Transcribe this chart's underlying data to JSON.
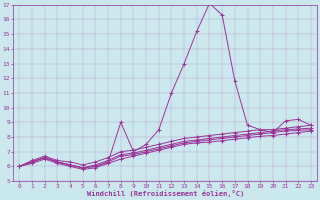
{
  "bg_color": "#cce8ef",
  "line_color": "#993399",
  "xlim_min": -0.5,
  "xlim_max": 23.5,
  "ylim_min": 5,
  "ylim_max": 17,
  "xtick_vals": [
    0,
    1,
    2,
    3,
    4,
    5,
    6,
    7,
    8,
    9,
    10,
    11,
    12,
    13,
    14,
    15,
    16,
    17,
    18,
    19,
    20,
    21,
    22,
    23
  ],
  "ytick_vals": [
    5,
    6,
    7,
    8,
    9,
    10,
    11,
    12,
    13,
    14,
    15,
    16,
    17
  ],
  "xlabel": "Windchill (Refroidissement éolien,°C)",
  "series": [
    [
      6.0,
      6.3,
      6.6,
      6.3,
      6.1,
      5.9,
      6.0,
      6.3,
      9.0,
      7.0,
      7.5,
      8.5,
      11.0,
      13.0,
      15.2,
      17.1,
      16.3,
      11.8,
      8.8,
      8.5,
      8.3,
      9.1,
      9.2,
      8.8
    ],
    [
      6.0,
      6.4,
      6.7,
      6.4,
      6.3,
      6.1,
      6.3,
      6.6,
      7.0,
      7.1,
      7.3,
      7.5,
      7.7,
      7.9,
      8.0,
      8.1,
      8.2,
      8.3,
      8.4,
      8.5,
      8.5,
      8.6,
      8.7,
      8.8
    ],
    [
      6.0,
      6.3,
      6.6,
      6.3,
      6.1,
      5.9,
      6.1,
      6.4,
      6.8,
      6.9,
      7.1,
      7.3,
      7.5,
      7.7,
      7.8,
      7.9,
      8.0,
      8.1,
      8.2,
      8.3,
      8.4,
      8.5,
      8.55,
      8.6
    ],
    [
      6.0,
      6.3,
      6.6,
      6.3,
      6.1,
      5.9,
      6.0,
      6.3,
      6.7,
      6.8,
      7.0,
      7.2,
      7.4,
      7.6,
      7.7,
      7.8,
      7.9,
      8.0,
      8.1,
      8.2,
      8.3,
      8.4,
      8.45,
      8.5
    ],
    [
      6.0,
      6.2,
      6.5,
      6.2,
      6.0,
      5.8,
      5.9,
      6.2,
      6.5,
      6.7,
      6.9,
      7.1,
      7.3,
      7.5,
      7.6,
      7.65,
      7.75,
      7.85,
      7.95,
      8.05,
      8.1,
      8.2,
      8.3,
      8.4
    ]
  ]
}
